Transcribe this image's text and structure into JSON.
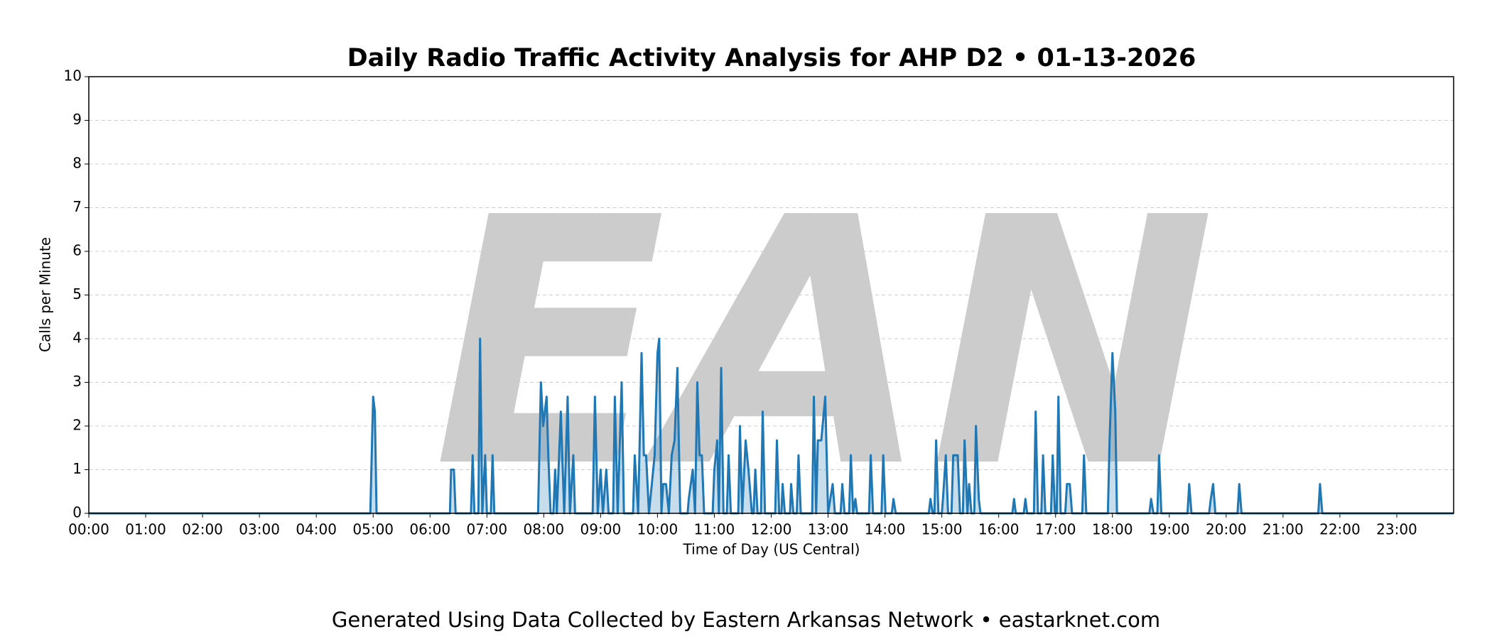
{
  "chart_data": {
    "type": "line",
    "title": "Daily Radio Traffic Activity Analysis for AHP D2 • 01-13-2026",
    "xlabel": "Time of Day (US Central)",
    "ylabel": "Calls per Minute",
    "watermark": "EAN",
    "color": "#1f77b4",
    "grid": true,
    "xlim": [
      0,
      24
    ],
    "ylim": [
      0,
      10
    ],
    "yticks": [
      0,
      1,
      2,
      3,
      4,
      5,
      6,
      7,
      8,
      9,
      10
    ],
    "xticks": [
      {
        "value": 0,
        "label": "00:00"
      },
      {
        "value": 1,
        "label": "01:00"
      },
      {
        "value": 2,
        "label": "02:00"
      },
      {
        "value": 3,
        "label": "03:00"
      },
      {
        "value": 4,
        "label": "04:00"
      },
      {
        "value": 5,
        "label": "05:00"
      },
      {
        "value": 6,
        "label": "06:00"
      },
      {
        "value": 7,
        "label": "07:00"
      },
      {
        "value": 8,
        "label": "08:00"
      },
      {
        "value": 9,
        "label": "09:00"
      },
      {
        "value": 10,
        "label": "10:00"
      },
      {
        "value": 11,
        "label": "11:00"
      },
      {
        "value": 12,
        "label": "12:00"
      },
      {
        "value": 13,
        "label": "13:00"
      },
      {
        "value": 14,
        "label": "14:00"
      },
      {
        "value": 15,
        "label": "15:00"
      },
      {
        "value": 16,
        "label": "16:00"
      },
      {
        "value": 17,
        "label": "17:00"
      },
      {
        "value": 18,
        "label": "18:00"
      },
      {
        "value": 19,
        "label": "19:00"
      },
      {
        "value": 20,
        "label": "20:00"
      },
      {
        "value": 21,
        "label": "21:00"
      },
      {
        "value": 22,
        "label": "22:00"
      },
      {
        "value": 23,
        "label": "23:00"
      }
    ],
    "x": [
      0,
      4.95,
      5.0,
      5.03,
      5.06,
      6.35,
      6.37,
      6.42,
      6.45,
      6.72,
      6.75,
      6.78,
      6.85,
      6.88,
      6.92,
      6.97,
      7.0,
      7.07,
      7.1,
      7.13,
      7.9,
      7.95,
      7.99,
      8.05,
      8.08,
      8.12,
      8.17,
      8.2,
      8.23,
      8.3,
      8.36,
      8.42,
      8.46,
      8.52,
      8.55,
      8.86,
      8.9,
      8.95,
      9.0,
      9.04,
      9.1,
      9.14,
      9.22,
      9.25,
      9.3,
      9.37,
      9.41,
      9.57,
      9.6,
      9.66,
      9.72,
      9.76,
      9.8,
      9.85,
      9.95,
      10.0,
      10.03,
      10.07,
      10.1,
      10.15,
      10.2,
      10.25,
      10.3,
      10.35,
      10.4,
      10.53,
      10.55,
      10.62,
      10.66,
      10.7,
      10.74,
      10.78,
      10.82,
      10.97,
      11.0,
      11.05,
      11.08,
      11.12,
      11.16,
      11.22,
      11.25,
      11.29,
      11.42,
      11.45,
      11.49,
      11.55,
      11.6,
      11.66,
      11.69,
      11.72,
      11.76,
      11.82,
      11.85,
      11.89,
      12.07,
      12.1,
      12.14,
      12.18,
      12.2,
      12.24,
      12.33,
      12.35,
      12.39,
      12.45,
      12.48,
      12.52,
      12.72,
      12.75,
      12.79,
      12.82,
      12.88,
      12.95,
      13.0,
      13.08,
      13.12,
      13.22,
      13.25,
      13.29,
      13.37,
      13.4,
      13.44,
      13.48,
      13.51,
      13.72,
      13.75,
      13.79,
      13.94,
      13.97,
      14.01,
      14.12,
      14.15,
      14.19,
      14.77,
      14.8,
      14.84,
      14.87,
      14.9,
      14.94,
      15.0,
      15.02,
      15.07,
      15.11,
      15.17,
      15.2,
      15.28,
      15.32,
      15.37,
      15.4,
      15.45,
      15.48,
      15.52,
      15.57,
      15.6,
      15.65,
      15.68,
      16.24,
      16.27,
      16.3,
      16.44,
      16.47,
      16.5,
      16.62,
      16.65,
      16.69,
      16.75,
      16.78,
      16.82,
      16.92,
      16.95,
      16.99,
      17.02,
      17.05,
      17.09,
      17.17,
      17.2,
      17.25,
      17.29,
      17.47,
      17.5,
      17.54,
      17.92,
      17.95,
      18.0,
      18.05,
      18.08,
      18.65,
      18.68,
      18.72,
      18.79,
      18.82,
      18.86,
      19.32,
      19.35,
      19.39,
      19.7,
      19.73,
      19.77,
      19.81,
      20.2,
      20.23,
      20.27,
      21.62,
      21.65,
      21.69,
      24
    ],
    "values": [
      0,
      0,
      2.67,
      2.33,
      0,
      0,
      1,
      1,
      0,
      0,
      1.33,
      0,
      0,
      4,
      0,
      1.33,
      0,
      0,
      1.33,
      0,
      0,
      3,
      2,
      2.67,
      1.33,
      0,
      0,
      1,
      0,
      2.33,
      0,
      2.67,
      0,
      1.33,
      0,
      0,
      2.67,
      0,
      1,
      0,
      1,
      0,
      0,
      2.67,
      0,
      3,
      0,
      0,
      1.33,
      0,
      3.67,
      1.33,
      1.33,
      0,
      1.33,
      3.67,
      4,
      0,
      0.67,
      0.67,
      0,
      1.33,
      1.67,
      3.33,
      0,
      0,
      0.33,
      1,
      0,
      3,
      1.33,
      1.33,
      0,
      0,
      1,
      1.67,
      0,
      3.33,
      0,
      0,
      1.33,
      0,
      0,
      2,
      0,
      1.67,
      1,
      0,
      0,
      1,
      0,
      0,
      2.33,
      0,
      0,
      1.67,
      0,
      0,
      0.67,
      0,
      0,
      0.67,
      0,
      0,
      1.33,
      0,
      0,
      2.67,
      0,
      1.67,
      1.67,
      2.67,
      0,
      0.67,
      0,
      0,
      0.67,
      0,
      0,
      1.33,
      0,
      0.33,
      0,
      0,
      1.33,
      0,
      0,
      1.33,
      0,
      0,
      0.33,
      0,
      0,
      0.33,
      0,
      0,
      1.67,
      0,
      0,
      0.33,
      1.33,
      0,
      0,
      1.33,
      1.33,
      0,
      0,
      1.67,
      0,
      0.67,
      0,
      0,
      2,
      0.33,
      0,
      0,
      0.33,
      0,
      0,
      0.33,
      0,
      0,
      2.33,
      0,
      0,
      1.33,
      0,
      0,
      1.33,
      0,
      0,
      2.67,
      0,
      0,
      0.67,
      0.67,
      0,
      0,
      1.33,
      0,
      0,
      1.67,
      3.67,
      2.33,
      0,
      0,
      0.33,
      0,
      0,
      1.33,
      0,
      0,
      0.67,
      0,
      0,
      0.33,
      0.67,
      0,
      0,
      0.67,
      0,
      0,
      0.67,
      0,
      0
    ]
  },
  "footer": "Generated Using Data Collected by Eastern Arkansas Network • eastarknet.com"
}
